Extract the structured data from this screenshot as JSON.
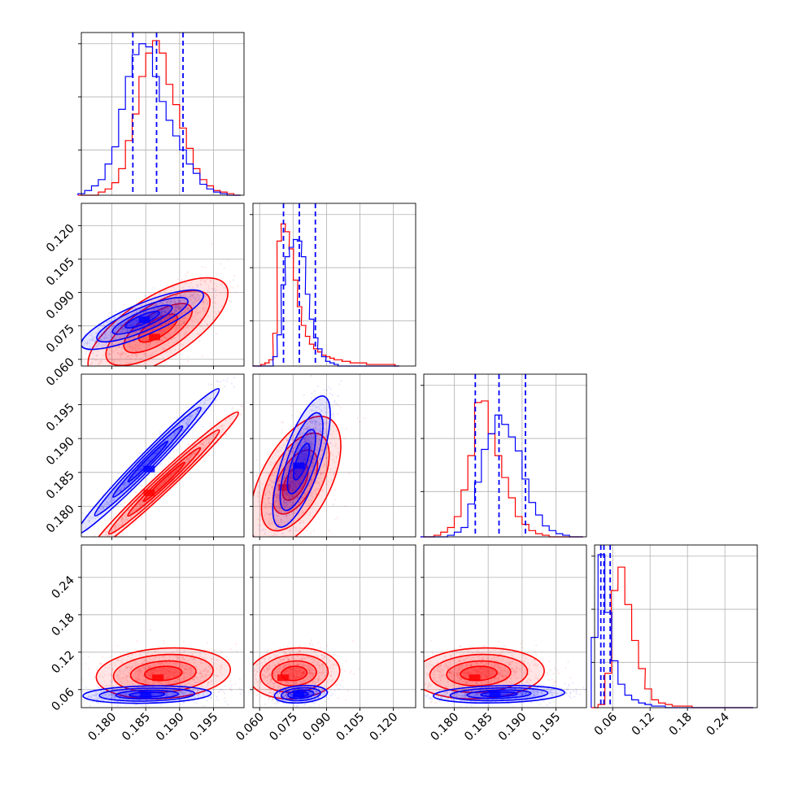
{
  "colors": {
    "series_a": "#0000ff",
    "series_b": "#ff0000",
    "grid": "#b0b0b0",
    "frame": "#000000"
  },
  "axis_ticks": {
    "p0": [
      "0.180",
      "0.185",
      "0.190",
      "0.195"
    ],
    "p1": [
      "0.060",
      "0.075",
      "0.090",
      "0.105",
      "0.120"
    ],
    "p2": [
      "0.180",
      "0.185",
      "0.190",
      "0.195"
    ],
    "p3": [
      "0.06",
      "0.12",
      "0.18",
      "0.24"
    ]
  },
  "chart_data": {
    "type": "corner",
    "series_colors": [
      "#0000ff",
      "#ff0000"
    ],
    "ranges": {
      "p0": [
        0.1755,
        0.1995
      ],
      "p1": [
        0.057,
        0.13
      ],
      "p2": [
        0.1755,
        0.1995
      ],
      "p3": [
        0.031,
        0.292
      ]
    },
    "tick_values": {
      "p0": [
        0.18,
        0.185,
        0.19,
        0.195
      ],
      "p1": [
        0.06,
        0.075,
        0.09,
        0.105,
        0.12
      ],
      "p2": [
        0.18,
        0.185,
        0.19,
        0.195
      ],
      "p3": [
        0.06,
        0.12,
        0.18,
        0.24
      ]
    },
    "quantile_lines": {
      "p0": [
        0.1831,
        0.1866,
        0.1905
      ],
      "p1": [
        0.0707,
        0.0778,
        0.085
      ],
      "p2": [
        0.1831,
        0.1866,
        0.1905
      ],
      "p3": [
        0.041,
        0.046,
        0.056
      ]
    },
    "histograms": [
      {
        "param": "p0",
        "x": [
          0.1755,
          0.1765,
          0.1775,
          0.1785,
          0.1795,
          0.1805,
          0.1815,
          0.1825,
          0.1835,
          0.1845,
          0.1855,
          0.1865,
          0.1875,
          0.1885,
          0.1895,
          0.1905,
          0.1915,
          0.1925,
          0.1935,
          0.1945,
          0.1955,
          0.1965,
          0.1975,
          0.1985
        ],
        "blue": [
          0.01,
          0.03,
          0.06,
          0.1,
          0.2,
          0.31,
          0.55,
          0.76,
          0.9,
          0.97,
          0.95,
          0.76,
          0.6,
          0.48,
          0.38,
          0.29,
          0.2,
          0.14,
          0.07,
          0.04,
          0.02,
          0.01,
          0.0,
          0.0
        ],
        "red": [
          0.0,
          0.0,
          0.0,
          0.02,
          0.04,
          0.08,
          0.17,
          0.35,
          0.52,
          0.76,
          0.91,
          0.99,
          0.91,
          0.71,
          0.58,
          0.43,
          0.3,
          0.17,
          0.1,
          0.06,
          0.03,
          0.02,
          0.01,
          0.0
        ]
      },
      {
        "param": "p1",
        "x": [
          0.0578,
          0.0597,
          0.0615,
          0.0633,
          0.0651,
          0.0669,
          0.0688,
          0.0706,
          0.0724,
          0.0742,
          0.0761,
          0.0779,
          0.0797,
          0.0815,
          0.0833,
          0.0852,
          0.087,
          0.0888,
          0.0906,
          0.0925,
          0.0943,
          0.0961,
          0.0979,
          0.0997,
          0.1016,
          0.1034,
          0.1052,
          0.107,
          0.1089,
          0.1107,
          0.1125,
          0.1143,
          0.1161,
          0.118,
          0.1198,
          0.1216
        ],
        "blue": [
          0.0,
          0.0,
          0.0,
          0.0,
          0.0,
          0.06,
          0.2,
          0.52,
          0.7,
          0.76,
          0.81,
          0.8,
          0.7,
          0.46,
          0.3,
          0.18,
          0.11,
          0.06,
          0.03,
          0.02,
          0.01,
          0.0,
          0.0,
          0.0,
          0.0,
          0.0,
          0.0,
          0.0,
          0.0,
          0.0,
          0.0,
          0.0,
          0.0,
          0.0,
          0.0,
          0.0
        ],
        "red": [
          0.0,
          0.0,
          0.01,
          0.02,
          0.04,
          0.21,
          0.8,
          0.91,
          0.86,
          0.75,
          0.55,
          0.38,
          0.26,
          0.19,
          0.14,
          0.11,
          0.09,
          0.07,
          0.06,
          0.05,
          0.04,
          0.04,
          0.03,
          0.03,
          0.02,
          0.02,
          0.02,
          0.02,
          0.01,
          0.01,
          0.01,
          0.01,
          0.01,
          0.01,
          0.01,
          0.0
        ]
      },
      {
        "param": "p2",
        "x": [
          0.1755,
          0.1765,
          0.1775,
          0.1785,
          0.1795,
          0.1805,
          0.1815,
          0.1825,
          0.1835,
          0.1845,
          0.1855,
          0.1865,
          0.1875,
          0.1885,
          0.1895,
          0.1905,
          0.1915,
          0.1925,
          0.1935,
          0.1945,
          0.1955,
          0.1965,
          0.1975,
          0.1985
        ],
        "blue": [
          0.0,
          0.0,
          0.0,
          0.0,
          0.01,
          0.03,
          0.06,
          0.21,
          0.35,
          0.56,
          0.66,
          0.78,
          0.72,
          0.64,
          0.55,
          0.37,
          0.22,
          0.14,
          0.07,
          0.04,
          0.02,
          0.01,
          0.0,
          0.0
        ],
        "red": [
          0.0,
          0.0,
          0.01,
          0.03,
          0.06,
          0.13,
          0.3,
          0.52,
          0.86,
          0.87,
          0.66,
          0.52,
          0.38,
          0.25,
          0.13,
          0.08,
          0.04,
          0.02,
          0.01,
          0.0,
          0.0,
          0.0,
          0.0,
          0.0
        ]
      },
      {
        "param": "p3",
        "x": [
          0.031,
          0.042,
          0.053,
          0.063,
          0.074,
          0.085,
          0.096,
          0.107,
          0.117,
          0.128,
          0.139,
          0.15,
          0.161,
          0.172,
          0.182,
          0.193,
          0.204,
          0.215,
          0.226,
          0.237,
          0.247,
          0.258,
          0.269,
          0.28
        ],
        "blue": [
          0.45,
          0.98,
          0.61,
          0.3,
          0.15,
          0.08,
          0.05,
          0.03,
          0.02,
          0.01,
          0.01,
          0.0,
          0.0,
          0.0,
          0.0,
          0.0,
          0.0,
          0.0,
          0.0,
          0.0,
          0.0,
          0.0,
          0.0,
          0.0
        ],
        "red": [
          0.0,
          0.02,
          0.22,
          0.75,
          0.9,
          0.66,
          0.43,
          0.25,
          0.12,
          0.05,
          0.03,
          0.02,
          0.01,
          0.01,
          0.01,
          0.0,
          0.0,
          0.0,
          0.0,
          0.0,
          0.0,
          0.0,
          0.0,
          0.0
        ]
      }
    ],
    "scatter_panels": [
      {
        "x": "p0",
        "y": "p1",
        "blue": {
          "center": [
            0.1845,
            0.0778
          ],
          "sd": [
            0.0042,
            0.0062
          ],
          "corr": 0.82,
          "mode": [
            0.1848,
            0.0778
          ]
        },
        "red": {
          "center": [
            0.1868,
            0.074
          ],
          "sd": [
            0.0048,
            0.0105
          ],
          "corr": 0.7,
          "mode": [
            0.1863,
            0.07
          ]
        }
      },
      {
        "x": "p0",
        "y": "p2",
        "blue": {
          "center": [
            0.1853,
            0.1866
          ],
          "sd": [
            0.0049,
            0.005
          ],
          "corr": 0.985,
          "mode": [
            0.1855,
            0.1855
          ]
        },
        "red": {
          "center": [
            0.1877,
            0.1836
          ],
          "sd": [
            0.0051,
            0.0048
          ],
          "corr": 0.985,
          "mode": [
            0.1855,
            0.182
          ]
        }
      },
      {
        "x": "p1",
        "y": "p2",
        "blue": {
          "center": [
            0.0788,
            0.1866
          ],
          "sd": [
            0.006,
            0.0045
          ],
          "corr": 0.72,
          "mode": [
            0.0775,
            0.186
          ]
        },
        "red": {
          "center": [
            0.076,
            0.1836
          ],
          "sd": [
            0.0095,
            0.0045
          ],
          "corr": 0.55,
          "mode": [
            0.071,
            0.1828
          ]
        }
      },
      {
        "x": "p0",
        "y": "p3",
        "blue": {
          "center": [
            0.1852,
            0.052
          ],
          "sd": [
            0.0044,
            0.0065
          ],
          "corr": 0.15,
          "mode": [
            0.185,
            0.052
          ]
        },
        "red": {
          "center": [
            0.1876,
            0.086
          ],
          "sd": [
            0.0046,
            0.019
          ],
          "corr": 0.15,
          "mode": [
            0.1868,
            0.079
          ]
        }
      },
      {
        "x": "p1",
        "y": "p3",
        "blue": {
          "center": [
            0.0785,
            0.0525
          ],
          "sd": [
            0.0055,
            0.0065
          ],
          "corr": 0.2,
          "mode": [
            0.0775,
            0.0525
          ]
        },
        "red": {
          "center": [
            0.0755,
            0.086
          ],
          "sd": [
            0.0095,
            0.019
          ],
          "corr": 0.1,
          "mode": [
            0.0705,
            0.079
          ]
        }
      },
      {
        "x": "p2",
        "y": "p3",
        "blue": {
          "center": [
            0.1866,
            0.0525
          ],
          "sd": [
            0.0045,
            0.0065
          ],
          "corr": 0.2,
          "mode": [
            0.186,
            0.0525
          ]
        },
        "red": {
          "center": [
            0.1836,
            0.086
          ],
          "sd": [
            0.0045,
            0.019
          ],
          "corr": 0.1,
          "mode": [
            0.183,
            0.079
          ]
        }
      }
    ]
  }
}
